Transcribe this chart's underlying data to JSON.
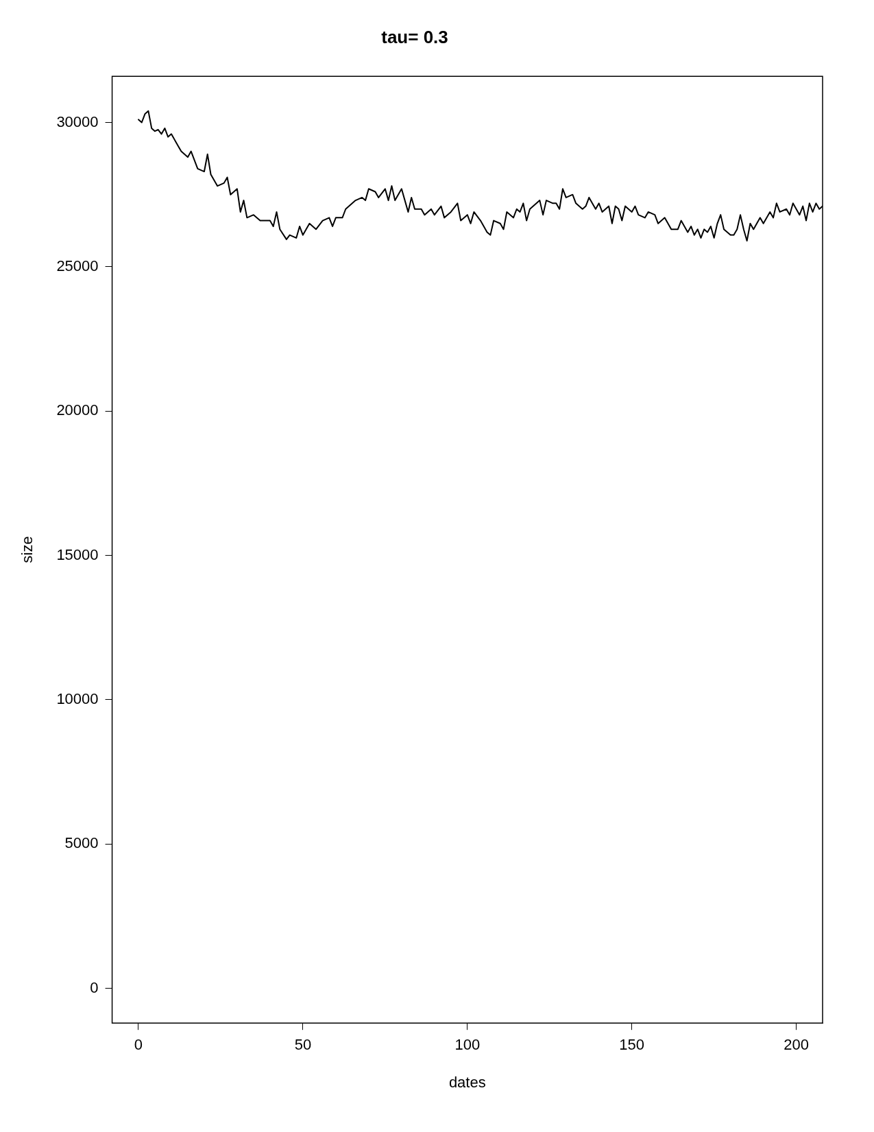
{
  "chart_data": {
    "type": "line",
    "title": "tau= 0.3",
    "xlabel": "dates",
    "ylabel": "size",
    "x": [
      0,
      1,
      2,
      3,
      4,
      5,
      6,
      7,
      8,
      9,
      10,
      12,
      13,
      15,
      16,
      18,
      20,
      21,
      22,
      24,
      26,
      27,
      28,
      30,
      31,
      32,
      33,
      35,
      37,
      40,
      41,
      42,
      43,
      45,
      46,
      48,
      49,
      50,
      52,
      54,
      56,
      58,
      59,
      60,
      62,
      63,
      64,
      66,
      68,
      69,
      70,
      72,
      73,
      75,
      76,
      77,
      78,
      80,
      81,
      82,
      83,
      84,
      86,
      87,
      89,
      90,
      92,
      93,
      95,
      97,
      98,
      100,
      101,
      102,
      104,
      106,
      107,
      108,
      110,
      111,
      112,
      114,
      115,
      116,
      117,
      118,
      119,
      121,
      122,
      123,
      124,
      126,
      127,
      128,
      129,
      130,
      132,
      133,
      135,
      136,
      137,
      139,
      140,
      141,
      143,
      144,
      145,
      146,
      147,
      148,
      150,
      151,
      152,
      154,
      155,
      157,
      158,
      160,
      161,
      162,
      164,
      165,
      167,
      168,
      169,
      170,
      171,
      172,
      173,
      174,
      175,
      176,
      177,
      178,
      180,
      181,
      182,
      183,
      184,
      185,
      186,
      187,
      189,
      190,
      192,
      193,
      194,
      195,
      197,
      198,
      199,
      201,
      202,
      203,
      204,
      205,
      206,
      207,
      208
    ],
    "series": [
      {
        "color": "#000000",
        "values": [
          30100,
          30000,
          30300,
          30400,
          29800,
          29700,
          29750,
          29600,
          29800,
          29500,
          29600,
          29200,
          29000,
          28800,
          29000,
          28400,
          28300,
          28900,
          28200,
          27800,
          27900,
          28100,
          27500,
          27700,
          26900,
          27300,
          26700,
          26800,
          26600,
          26600,
          26400,
          26900,
          26300,
          25950,
          26100,
          26000,
          26400,
          26100,
          26500,
          26300,
          26600,
          26700,
          26400,
          26700,
          26700,
          27000,
          27100,
          27300,
          27400,
          27300,
          27700,
          27600,
          27400,
          27700,
          27300,
          27800,
          27300,
          27700,
          27300,
          26900,
          27400,
          27000,
          27000,
          26800,
          27000,
          26800,
          27100,
          26700,
          26900,
          27200,
          26600,
          26800,
          26500,
          26900,
          26600,
          26200,
          26100,
          26600,
          26500,
          26300,
          26900,
          26700,
          27000,
          26900,
          27200,
          26600,
          27000,
          27200,
          27300,
          26800,
          27300,
          27200,
          27200,
          27000,
          27700,
          27400,
          27500,
          27200,
          27000,
          27100,
          27400,
          27000,
          27200,
          26900,
          27100,
          26500,
          27100,
          27000,
          26600,
          27100,
          26900,
          27100,
          26800,
          26700,
          26900,
          26800,
          26500,
          26700,
          26500,
          26300,
          26300,
          26600,
          26200,
          26400,
          26100,
          26300,
          26000,
          26300,
          26200,
          26400,
          26000,
          26500,
          26800,
          26300,
          26100,
          26100,
          26300,
          26800,
          26300,
          25900,
          26500,
          26300,
          26700,
          26500,
          26900,
          26700,
          27200,
          26900,
          27000,
          26800,
          27200,
          26800,
          27100,
          26600,
          27200,
          26900,
          27200,
          27000,
          27100
        ]
      }
    ],
    "xlim": [
      -8,
      208
    ],
    "ylim": [
      -1200,
      31600
    ],
    "xticks": [
      0,
      50,
      100,
      150,
      200
    ],
    "yticks": [
      0,
      5000,
      10000,
      15000,
      20000,
      25000,
      30000
    ],
    "grid": false,
    "legend": false,
    "marker": "none",
    "line_style": "solid"
  }
}
